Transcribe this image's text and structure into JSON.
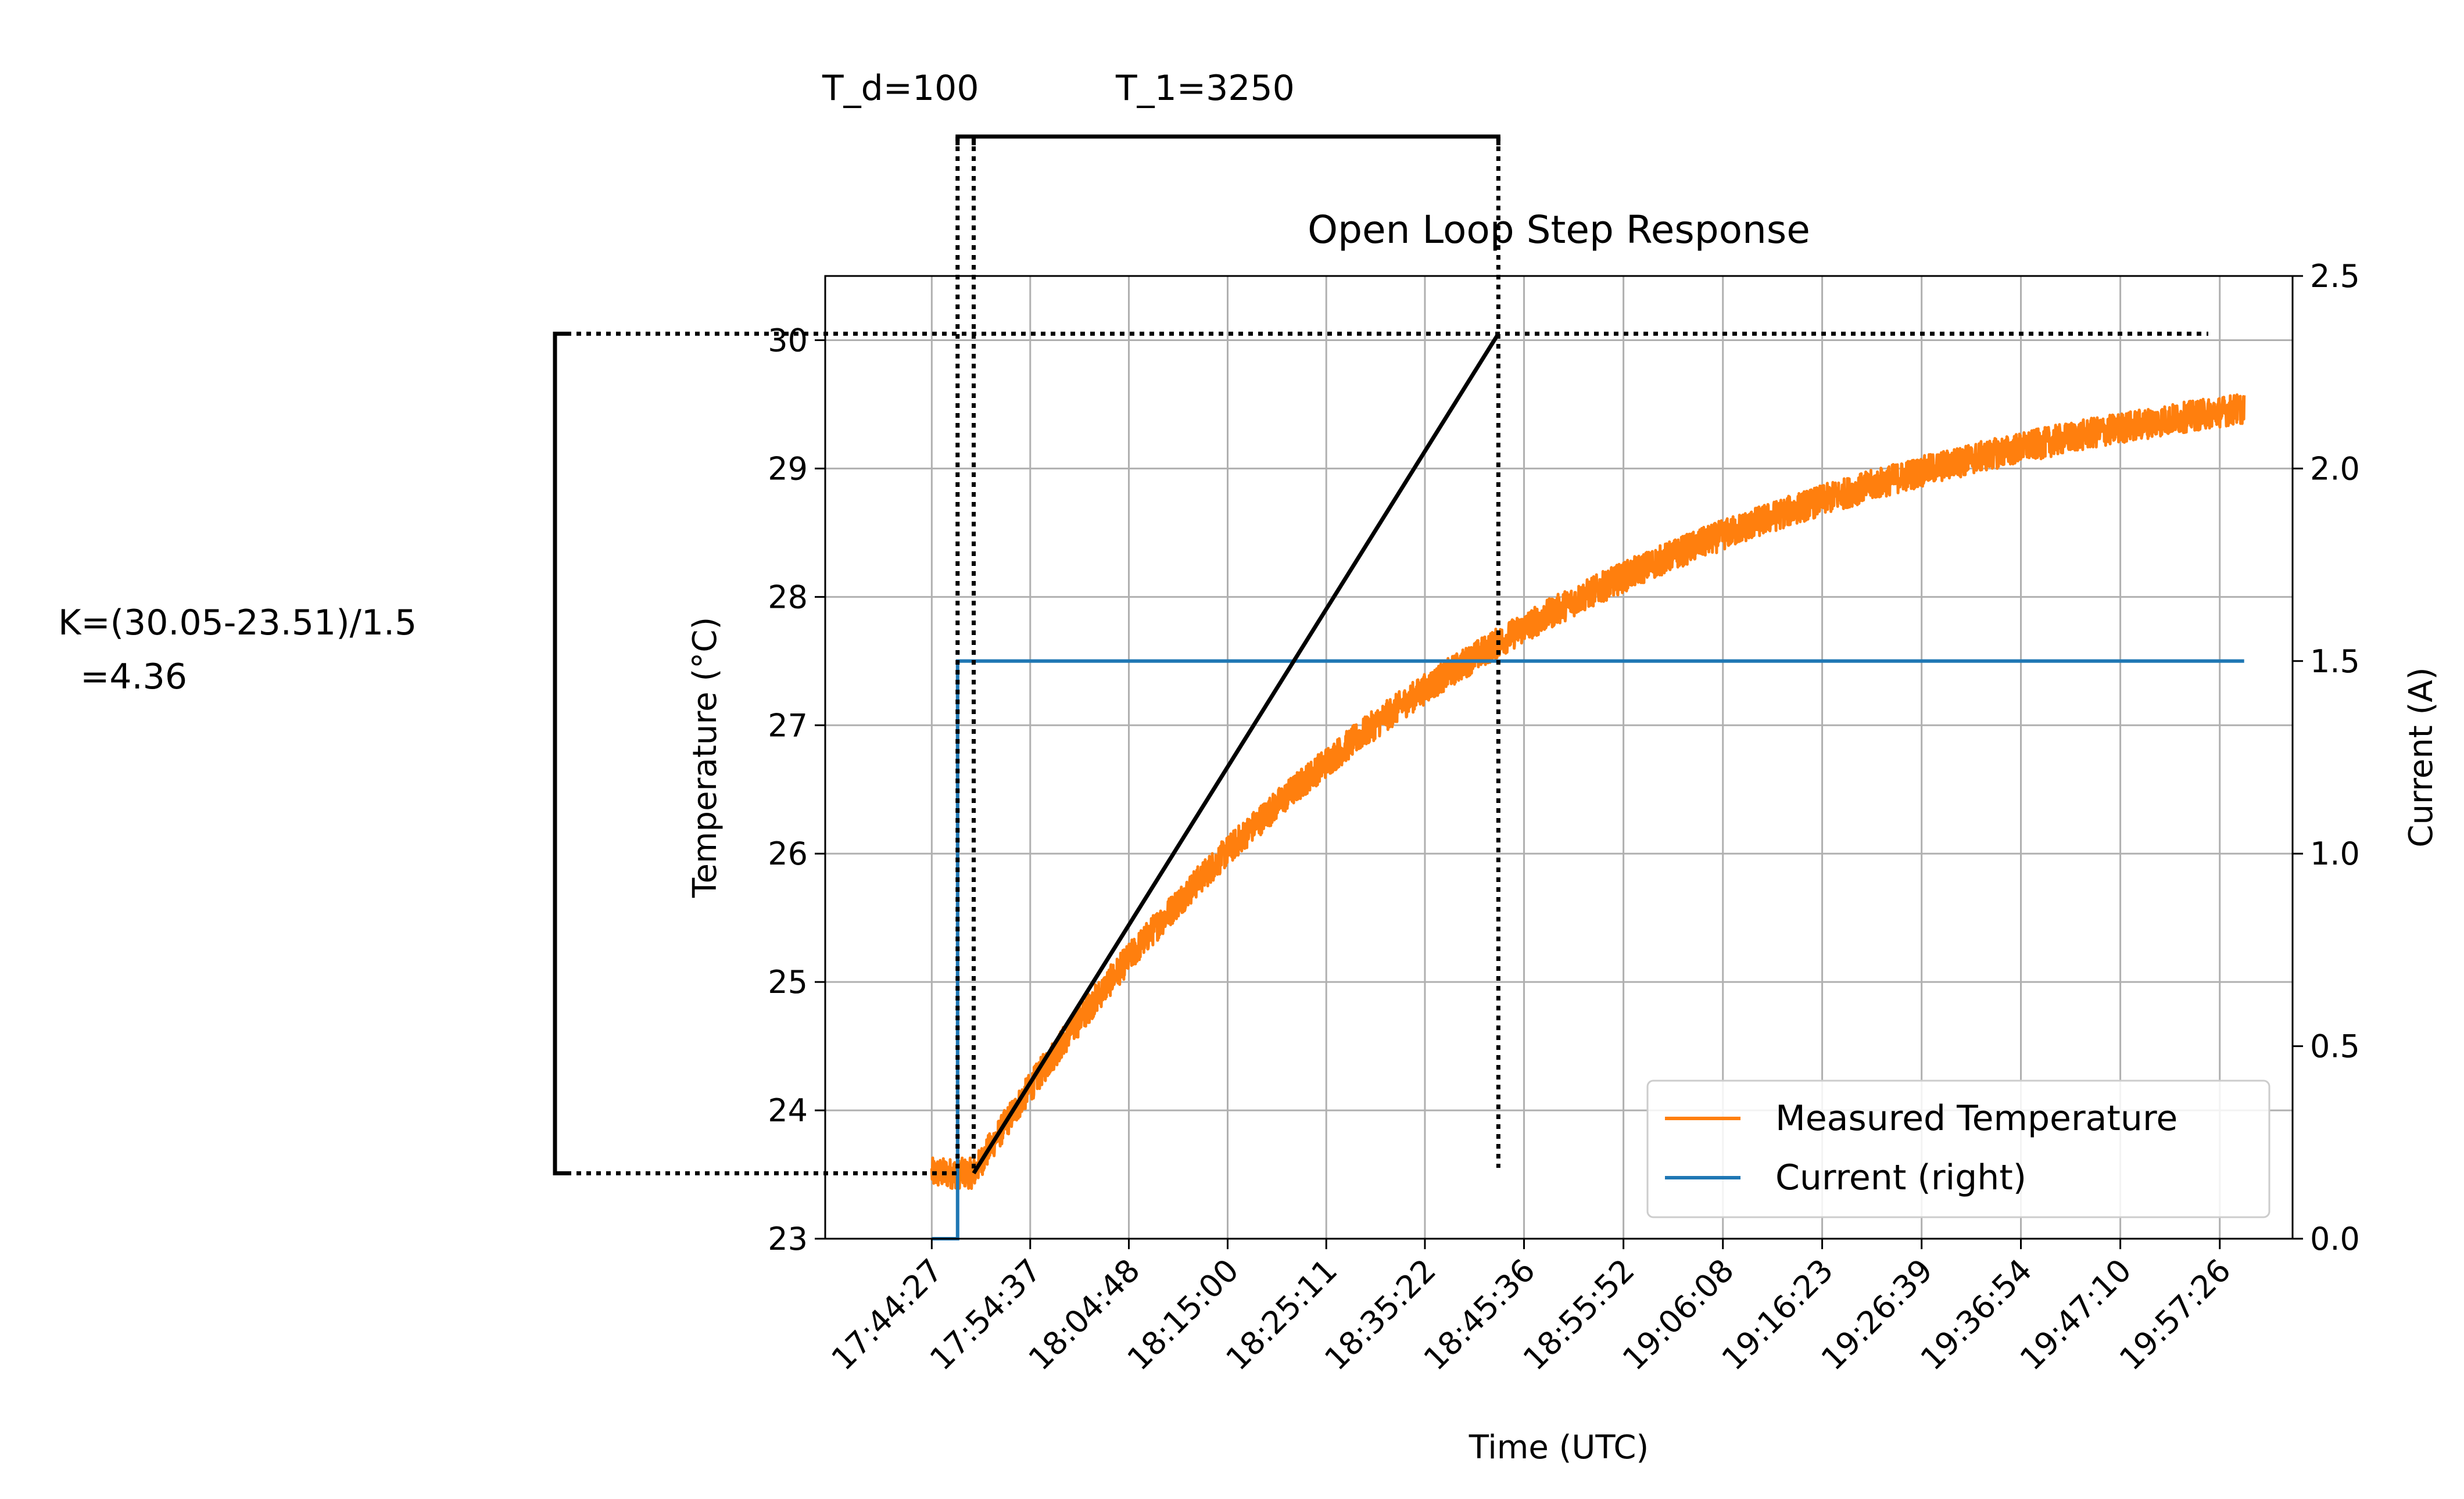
{
  "chart_data": {
    "type": "line",
    "title": "Open Loop Step Response",
    "xlabel": "Time (UTC)",
    "ylabel_left": "Temperature (°C)",
    "ylabel_right": "Current (A)",
    "x_tick_labels": [
      "17:44:27",
      "17:54:37",
      "18:04:48",
      "18:15:00",
      "18:25:11",
      "18:35:22",
      "18:45:36",
      "18:55:52",
      "19:06:08",
      "19:16:23",
      "19:26:39",
      "19:36:54",
      "19:47:10",
      "19:57:26"
    ],
    "x_tick_seconds": [
      0,
      610,
      1221,
      1833,
      2444,
      3055,
      3669,
      4285,
      4901,
      5516,
      6132,
      6747,
      7363,
      7979
    ],
    "xlim_seconds": [
      -660,
      8430
    ],
    "ylim_left": [
      23,
      30.5
    ],
    "yticks_left": [
      23,
      24,
      25,
      26,
      27,
      28,
      29,
      30
    ],
    "ylim_right": [
      0,
      2.5
    ],
    "yticks_right": [
      0.0,
      0.5,
      1.0,
      1.5,
      2.0,
      2.5
    ],
    "yticks_right_labels": [
      "0.0",
      "0.5",
      "1.0",
      "1.5",
      "2.0",
      "2.5"
    ],
    "grid": true,
    "legend_position": "lower-right",
    "series": [
      {
        "name": "Measured Temperature",
        "axis": "left",
        "color": "#ff7f0e",
        "start_seconds": 0,
        "end_seconds": 8130,
        "step_seconds": 160,
        "initial_value": 23.51,
        "final_value": 30.05,
        "time_constant_seconds": 3250,
        "dead_time_seconds": 100,
        "step_time_seconds": 160,
        "noise_amplitude": 0.12
      },
      {
        "name": "Current (right)",
        "axis": "right",
        "color": "#1f77b4",
        "points": [
          [
            0,
            0
          ],
          [
            160,
            0
          ],
          [
            160,
            1.5
          ],
          [
            8130,
            1.5
          ]
        ]
      }
    ],
    "annotations": {
      "td_label": "T_d=100",
      "t1_label": "T_1=3250",
      "k_label_line1": "K=(30.05-23.51)/1.5",
      "k_label_line2": "  =4.36",
      "tangent_line": [
        [
          260,
          23.51
        ],
        [
          3510,
          30.05
        ]
      ],
      "level_low": 23.51,
      "level_high": 30.05,
      "step_time_seconds": 160,
      "dead_time_end_seconds": 260,
      "t1_end_seconds": 3510
    }
  }
}
